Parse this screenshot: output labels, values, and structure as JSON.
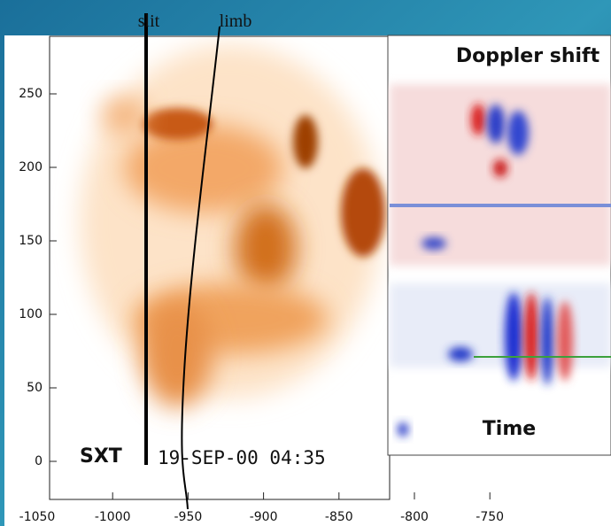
{
  "labels": {
    "slit": "slit",
    "limb": "limb",
    "instrument": "SXT",
    "timestamp": "19-SEP-00 04:35"
  },
  "inset": {
    "title": "Doppler shift",
    "x_label": "Time"
  },
  "y_axis": {
    "ticks": [
      "250",
      "200",
      "150",
      "100",
      "50",
      "0"
    ]
  },
  "x_axis": {
    "ticks": [
      "-1050",
      "-1000",
      "-950",
      "-900",
      "-850",
      "-800",
      "-750"
    ]
  }
}
